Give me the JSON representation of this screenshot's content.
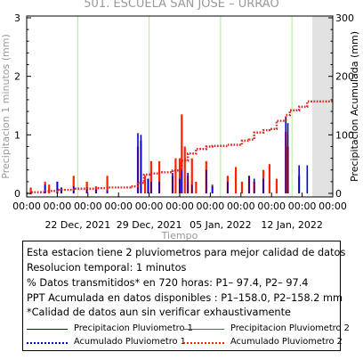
{
  "chart_data": {
    "type": "line",
    "title": "501. ESCUELA SAN JOSE – URRAO",
    "xlabel": "Tiempo",
    "ylabel_left": "Precipitacion 1 minutos (mm)",
    "ylabel_right": "Precipitacion Acumulada (mm)",
    "ylim_left": [
      0,
      3
    ],
    "ylim_right": [
      0,
      300
    ],
    "left_ticks": [
      "0",
      "1",
      "2",
      "3"
    ],
    "right_ticks": [
      "0",
      "100",
      "200",
      "300"
    ],
    "time_tick_labels": [
      "00:00",
      "00:00",
      "00:00",
      "00:00",
      "00:00",
      "00:00",
      "00:00",
      "00:00",
      "00:00",
      "00:00",
      "00:00"
    ],
    "date_labels": [
      "22 Dec, 2021",
      "29 Dec, 2021",
      "05 Jan, 2022",
      "12 Jan, 2022"
    ],
    "x_range_days": [
      0,
      30
    ],
    "date_label_day_offsets": [
      5,
      12,
      19,
      26
    ],
    "date_gridline_day_offsets": [
      5,
      12,
      19,
      26
    ],
    "grid": "vertical green lines at each labeled date",
    "missing_data_span_days": [
      28,
      30
    ],
    "series": [
      {
        "name": "Precipitacion Pluviometro 1",
        "color": "#0000cc",
        "style": "solid",
        "axis": "left",
        "x": [
          1.8,
          3.0,
          3.4,
          4.6,
          5.9,
          6.8,
          7.9,
          10.9,
          11.2,
          11.9,
          12.2,
          13.0,
          14.3,
          15.0,
          15.2,
          15.8,
          16.2,
          17.6,
          18.2,
          19.7,
          21.8,
          22.3,
          23.2,
          25.4,
          25.6,
          26.7,
          27.5
        ],
        "y": [
          0.15,
          0.2,
          0.1,
          0.12,
          0.1,
          0.08,
          0.05,
          1.03,
          1.0,
          0.25,
          0.2,
          0.2,
          0.35,
          0.25,
          0.4,
          0.35,
          0.15,
          0.4,
          0.12,
          0.2,
          0.3,
          0.25,
          0.25,
          1.3,
          1.2,
          0.48,
          0.48
        ]
      },
      {
        "name": "Precipitacion Pluviometro 2",
        "color": "#ff2200",
        "style": "solid",
        "axis": "left",
        "x": [
          0.4,
          1.8,
          2.2,
          3.0,
          3.4,
          4.6,
          5.9,
          6.8,
          7.9,
          10.9,
          11.2,
          11.6,
          11.9,
          12.2,
          13.0,
          14.3,
          14.6,
          15.0,
          15.2,
          15.5,
          15.8,
          16.2,
          16.6,
          17.6,
          18.2,
          19.7,
          20.5,
          21.1,
          21.8,
          22.3,
          23.2,
          23.8,
          24.5,
          25.4,
          25.6,
          26.7
        ],
        "y": [
          0.1,
          0.2,
          0.15,
          0.2,
          0.1,
          0.3,
          0.2,
          0.12,
          0.3,
          0.8,
          0.9,
          0.3,
          0.25,
          0.55,
          0.55,
          0.3,
          0.6,
          0.6,
          1.35,
          0.8,
          0.3,
          0.6,
          0.2,
          0.55,
          0.15,
          0.3,
          0.45,
          0.2,
          0.3,
          0.2,
          0.4,
          0.5,
          0.25,
          1.05,
          0.8,
          0.3
        ]
      },
      {
        "name": "Acumulado Pluviometro 1",
        "color": "#0000cc",
        "style": "dotted",
        "axis": "right",
        "x": [
          0,
          0.4,
          1.8,
          3.0,
          4.6,
          5.9,
          6.8,
          7.9,
          10.2,
          10.9,
          11.5,
          12.2,
          13.0,
          14.3,
          15.2,
          15.8,
          16.6,
          17.6,
          18.2,
          19.7,
          21.1,
          21.8,
          22.3,
          23.2,
          23.8,
          24.5,
          25.4,
          25.8,
          26.7,
          27.5,
          30
        ],
        "y": [
          0,
          2,
          4,
          6,
          8,
          8,
          9,
          10,
          12,
          18,
          32,
          34,
          36,
          39,
          56,
          68,
          76,
          80,
          81,
          83,
          90,
          92,
          104,
          108,
          110,
          124,
          134,
          142,
          148,
          157,
          158
        ]
      },
      {
        "name": "Acumulado Pluviometro 2",
        "color": "#ff2200",
        "style": "dotted",
        "axis": "right",
        "x": [
          0,
          0.4,
          1.8,
          3.0,
          4.6,
          5.9,
          6.8,
          7.9,
          10.2,
          10.9,
          11.5,
          12.2,
          13.0,
          14.3,
          15.2,
          15.8,
          16.6,
          17.6,
          18.2,
          19.7,
          21.1,
          21.8,
          22.3,
          23.2,
          23.8,
          24.5,
          25.4,
          25.8,
          26.7,
          27.5,
          30
        ],
        "y": [
          0,
          2,
          4,
          6,
          8,
          8,
          9,
          10,
          12,
          18,
          32,
          34,
          36,
          39,
          56,
          68,
          76,
          80,
          81,
          83,
          90,
          92,
          104,
          108,
          110,
          124,
          134,
          142,
          148,
          157,
          158.2
        ]
      }
    ]
  },
  "info_box": {
    "lines": [
      "Esta estacion tiene 2 pluviometros para mejor calidad de datos",
      "Resolucion temporal: 1 minutos",
      "% Datos transmitidos* en 720 horas: P1– 97.4, P2– 97.4",
      "PPT Acumulada en datos disponibles : P1–158.0, P2–158.2 mm",
      "*Calidad de datos aun sin verificar exhaustivamente"
    ]
  }
}
